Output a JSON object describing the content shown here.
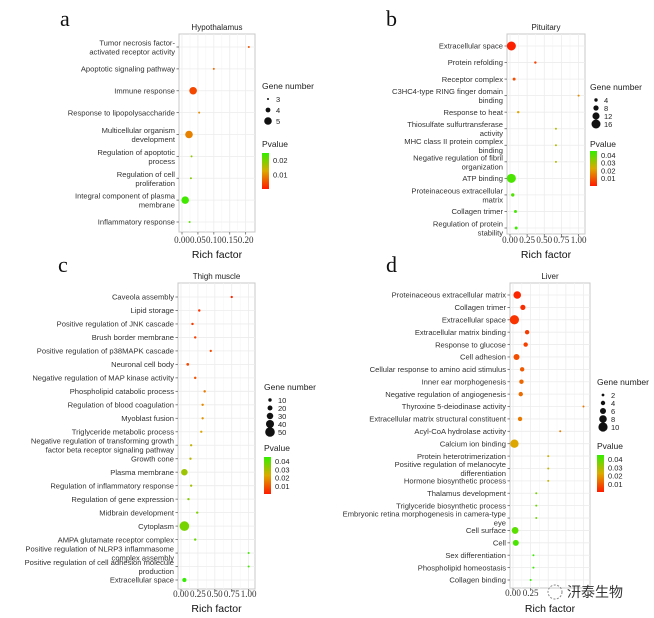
{
  "chart_data": [
    {
      "type": "scatter",
      "panel_label": "a",
      "title": "Hypothalamus",
      "xlabel": "Rich factor",
      "ylabel": "",
      "xlim": [
        0,
        0.22
      ],
      "xticks": [
        "0.00",
        "0.05",
        "0.10",
        "0.15",
        "0.20"
      ],
      "xtick_values": [
        0,
        0.05,
        0.1,
        0.15,
        0.2
      ],
      "grid": true,
      "size_legend": {
        "title": "Gene number",
        "values": [
          3,
          4,
          5
        ],
        "range": [
          3,
          5
        ]
      },
      "color_legend": {
        "title": "Pvalue",
        "ticks": [
          "0.01",
          "0.02"
        ],
        "tick_values": [
          0.01,
          0.02
        ],
        "range": [
          0.0,
          0.025
        ],
        "low_color": "#ff1a00",
        "high_color": "#33ee00"
      },
      "legend_placement": "right",
      "categories": [
        "Tumor necrosis factor-\nactivated receptor activity",
        "Apoptotic signaling pathway",
        "Immune response",
        "Response to lipopolysaccharide",
        "Multicellular organism\ndevelopment",
        "Regulation of apoptotic\nprocess",
        "Regulation of cell\nproliferation",
        "Integral component of plasma\nmembrane",
        "Inflammatory response"
      ],
      "rich_factor": [
        0.21,
        0.1,
        0.035,
        0.054,
        0.022,
        0.03,
        0.028,
        0.01,
        0.024
      ],
      "gene_number": [
        3,
        3,
        5,
        3,
        5,
        3,
        3,
        5,
        3
      ],
      "pvalue": [
        0.005,
        0.007,
        0.004,
        0.01,
        0.009,
        0.018,
        0.019,
        0.024,
        0.022
      ]
    },
    {
      "type": "scatter",
      "panel_label": "b",
      "title": "Pituitary",
      "xlabel": "Rich factor",
      "ylabel": "",
      "xlim": [
        0,
        1.05
      ],
      "xticks": [
        "0.00",
        "0.25",
        "0.50",
        "0.75",
        "1.00"
      ],
      "xtick_values": [
        0,
        0.25,
        0.5,
        0.75,
        1.0
      ],
      "grid": true,
      "size_legend": {
        "title": "Gene number",
        "values": [
          4,
          8,
          12,
          16
        ],
        "range": [
          1,
          16
        ]
      },
      "color_legend": {
        "title": "Pvalue",
        "ticks": [
          "0.04",
          "0.03",
          "0.02",
          "0.01"
        ],
        "tick_values": [
          0.04,
          0.03,
          0.02,
          0.01
        ],
        "range": [
          0.0,
          0.045
        ],
        "low_color": "#ff1a00",
        "high_color": "#33ee00"
      },
      "legend_placement": "right",
      "categories": [
        "Extracellular space",
        "Protein refolding",
        "Receptor complex",
        "C3HC4-type RING finger domain\nbinding",
        "Response to heat",
        "Thiosulfate sulfurtransferase\nactivity",
        "MHC class II protein complex\nbinding",
        "Negative regulation of fibril\norganization",
        "ATP binding",
        "Proteinaceous extracellular\nmatrix",
        "Collagen trimer",
        "Regulation of protein\nstability"
      ],
      "rich_factor": [
        0.02,
        0.37,
        0.06,
        1.0,
        0.12,
        0.67,
        0.67,
        0.67,
        0.02,
        0.04,
        0.08,
        0.09
      ],
      "gene_number": [
        16,
        2,
        3,
        1,
        2,
        1,
        1,
        1,
        16,
        4,
        3,
        3
      ],
      "pvalue": [
        0.001,
        0.006,
        0.008,
        0.018,
        0.022,
        0.028,
        0.028,
        0.028,
        0.042,
        0.041,
        0.043,
        0.044
      ]
    },
    {
      "type": "scatter",
      "panel_label": "c",
      "title": "Thigh muscle",
      "xlabel": "Rich factor",
      "ylabel": "",
      "xlim": [
        0,
        1.05
      ],
      "xticks": [
        "0.00",
        "0.25",
        "0.50",
        "0.75",
        "1.00"
      ],
      "xtick_values": [
        0,
        0.25,
        0.5,
        0.75,
        1.0
      ],
      "grid": true,
      "size_legend": {
        "title": "Gene number",
        "values": [
          10,
          20,
          30,
          40,
          50
        ],
        "range": [
          1,
          50
        ]
      },
      "color_legend": {
        "title": "Pvalue",
        "ticks": [
          "0.04",
          "0.03",
          "0.02",
          "0.01"
        ],
        "tick_values": [
          0.04,
          0.03,
          0.02,
          0.01
        ],
        "range": [
          0.0,
          0.045
        ],
        "low_color": "#ff1a00",
        "high_color": "#33ee00"
      },
      "legend_placement": "right",
      "categories": [
        "Caveola assembly",
        "Lipid storage",
        "Positive regulation of JNK cascade",
        "Brush border membrane",
        "Positive regulation of p38MAPK cascade",
        "Neuronal cell body",
        "Negative regulation of MAP kinase activity",
        "Phospholipid catabolic process",
        "Regulation of blood coagulation",
        "Myoblast fusion",
        "Triglyceride metabolic process",
        "Negative regulation of transforming growth\nfactor beta receptor signaling pathway",
        "Growth cone",
        "Plasma membrane",
        "Regulation of inflammatory response",
        "Regulation of gene expression",
        "Midbrain development",
        "Cytoplasm",
        "AMPA glutamate receptor complex",
        "Positive regulation of NLRP3 inflammasome\ncomplex assembly",
        "Positive regulation of cell adhesion molecule\nproduction",
        "Extracellular space"
      ],
      "rich_factor": [
        0.75,
        0.27,
        0.17,
        0.21,
        0.44,
        0.1,
        0.21,
        0.35,
        0.32,
        0.32,
        0.3,
        0.15,
        0.14,
        0.05,
        0.15,
        0.11,
        0.24,
        0.05,
        0.21,
        1.0,
        1.0,
        0.05
      ],
      "gene_number": [
        3,
        4,
        4,
        4,
        3,
        6,
        4,
        4,
        4,
        3,
        3,
        3,
        3,
        30,
        3,
        3,
        3,
        50,
        3,
        1,
        1,
        15
      ],
      "pvalue": [
        0.002,
        0.004,
        0.005,
        0.006,
        0.008,
        0.007,
        0.009,
        0.015,
        0.018,
        0.019,
        0.022,
        0.026,
        0.027,
        0.031,
        0.03,
        0.034,
        0.035,
        0.036,
        0.038,
        0.043,
        0.043,
        0.045
      ]
    },
    {
      "type": "scatter",
      "panel_label": "d",
      "title": "Liver",
      "xlabel": "Rich factor",
      "ylabel": "",
      "xlim": [
        0,
        1.05
      ],
      "xticks": [
        "0.00",
        "0.25"
      ],
      "xtick_values": [
        0,
        0.25
      ],
      "grid": true,
      "size_legend": {
        "title": "Gene number",
        "values": [
          2,
          4,
          6,
          8,
          10
        ],
        "range": [
          1,
          10
        ]
      },
      "color_legend": {
        "title": "Pvalue",
        "ticks": [
          "0.04",
          "0.03",
          "0.02",
          "0.01"
        ],
        "tick_values": [
          0.04,
          0.03,
          0.02,
          0.01
        ],
        "range": [
          0.0,
          0.045
        ],
        "low_color": "#ff1a00",
        "high_color": "#33ee00"
      },
      "legend_placement": "right",
      "categories": [
        "Proteinaceous extracellular matrix",
        "Collagen trimer",
        "Extracellular space",
        "Extracellular matrix binding",
        "Response to glucose",
        "Cell adhesion",
        "Cellular response to amino acid stimulus",
        "Inner ear morphogenesis",
        "Negative regulation of angiogenesis",
        "Thyroxine 5-deiodinase activity",
        "Extracellular matrix structural constituent",
        "Acyl-CoA hydrolase activity",
        "Calcium ion binding",
        "Protein heterotrimerization",
        "Positive regulation of melanocyte\ndifferentiation",
        "Hormone biosynthetic process",
        "Thalamus development",
        "Triglyceride biosynthetic process",
        "Embryonic retina morphogenesis in camera-type\neye",
        "Cell surface",
        "Cell",
        "Sex differentiation",
        "Phospholipid homeostasis",
        "Collagen binding"
      ],
      "rich_factor": [
        0.06,
        0.14,
        0.02,
        0.2,
        0.18,
        0.05,
        0.13,
        0.12,
        0.11,
        1.0,
        0.1,
        0.67,
        0.02,
        0.5,
        0.5,
        0.5,
        0.33,
        0.33,
        0.33,
        0.03,
        0.04,
        0.29,
        0.29,
        0.25
      ],
      "gene_number": [
        8,
        5,
        10,
        4,
        4,
        6,
        4,
        4,
        4,
        1,
        4,
        1,
        9,
        1,
        1,
        1,
        1,
        1,
        1,
        7,
        6,
        1,
        1,
        1
      ],
      "pvalue": [
        0.002,
        0.003,
        0.004,
        0.005,
        0.006,
        0.008,
        0.01,
        0.012,
        0.013,
        0.014,
        0.015,
        0.016,
        0.022,
        0.025,
        0.026,
        0.026,
        0.036,
        0.037,
        0.037,
        0.04,
        0.042,
        0.044,
        0.044,
        0.045
      ]
    }
  ],
  "watermark": "㈜ 汧泰生物"
}
